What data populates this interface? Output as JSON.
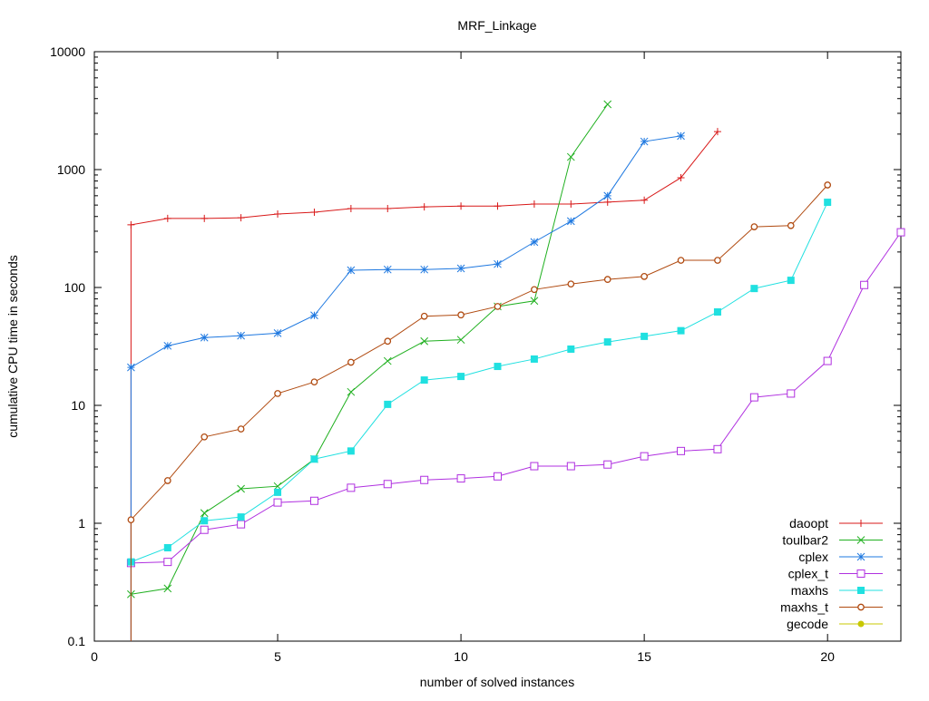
{
  "chart_data": {
    "type": "line",
    "title": "MRF_Linkage",
    "xlabel": "number of solved instances",
    "ylabel": "cumulative CPU time in seconds",
    "xlim": [
      0,
      22
    ],
    "ylim": [
      0.1,
      10000
    ],
    "yscale": "log",
    "xticks": [
      0,
      5,
      10,
      15,
      20
    ],
    "xtick_labels": [
      "0",
      "5",
      "10",
      "15",
      "20"
    ],
    "yticks": [
      0.1,
      1,
      10,
      100,
      1000,
      10000
    ],
    "ytick_labels": [
      "0.1",
      "1",
      "10",
      "100",
      "1000",
      "10000"
    ],
    "grid": false,
    "legend_position": "bottom-right",
    "series": [
      {
        "name": "daoopt",
        "color": "#d81818",
        "marker": "plus",
        "drops_to_axis": true,
        "x": [
          1,
          2,
          3,
          4,
          5,
          6,
          7,
          8,
          9,
          10,
          11,
          12,
          13,
          14,
          15,
          16,
          17
        ],
        "y": [
          340,
          385,
          385,
          390,
          420,
          435,
          467,
          467,
          483,
          490,
          490,
          510,
          510,
          530,
          550,
          853,
          2100
        ]
      },
      {
        "name": "toulbar2",
        "color": "#20b020",
        "marker": "cross",
        "drops_to_axis": false,
        "x": [
          1,
          2,
          3,
          4,
          5,
          6,
          7,
          8,
          9,
          10,
          11,
          12,
          13,
          14
        ],
        "y": [
          0.25,
          0.28,
          1.22,
          1.96,
          2.06,
          3.5,
          13,
          23.8,
          35,
          36,
          69,
          77,
          1280,
          3580
        ]
      },
      {
        "name": "cplex",
        "color": "#1e78e0",
        "marker": "star",
        "drops_to_axis": true,
        "x": [
          1,
          2,
          3,
          4,
          5,
          6,
          7,
          8,
          9,
          10,
          11,
          12,
          13,
          14,
          15,
          16
        ],
        "y": [
          21,
          32,
          37.6,
          39,
          41,
          58,
          140,
          142,
          142,
          145,
          158,
          243,
          365,
          600,
          1730,
          1930
        ]
      },
      {
        "name": "cplex_t",
        "color": "#b030e0",
        "marker": "open-square",
        "drops_to_axis": false,
        "x": [
          1,
          2,
          3,
          4,
          5,
          6,
          7,
          8,
          9,
          10,
          11,
          12,
          13,
          14,
          15,
          16,
          17,
          18,
          19,
          20,
          21,
          22
        ],
        "y": [
          0.46,
          0.47,
          0.88,
          0.98,
          1.5,
          1.55,
          2.0,
          2.15,
          2.33,
          2.4,
          2.5,
          3.05,
          3.05,
          3.15,
          3.7,
          4.1,
          4.25,
          11.7,
          12.6,
          23.8,
          105,
          294
        ]
      },
      {
        "name": "maxhs",
        "color": "#20e0e0",
        "marker": "filled-square",
        "drops_to_axis": false,
        "x": [
          1,
          2,
          3,
          4,
          5,
          6,
          7,
          8,
          9,
          10,
          11,
          12,
          13,
          14,
          15,
          16,
          17,
          18,
          19,
          20
        ],
        "y": [
          0.47,
          0.62,
          1.05,
          1.13,
          1.83,
          3.5,
          4.1,
          10.2,
          16.4,
          17.6,
          21.4,
          24.7,
          30,
          34.5,
          38.5,
          43,
          62,
          98,
          115,
          528
        ]
      },
      {
        "name": "maxhs_t",
        "color": "#b04a10",
        "marker": "open-circle",
        "drops_to_axis": true,
        "x": [
          1,
          2,
          3,
          4,
          5,
          6,
          7,
          8,
          9,
          10,
          11,
          12,
          13,
          14,
          15,
          16,
          17,
          18,
          19,
          20
        ],
        "y": [
          1.07,
          2.3,
          5.4,
          6.3,
          12.6,
          15.8,
          23.2,
          35,
          57,
          58.5,
          69,
          96,
          107,
          117,
          124,
          170,
          170,
          327,
          335,
          740
        ]
      },
      {
        "name": "gecode",
        "color": "#c8c800",
        "marker": "filled-circle",
        "drops_to_axis": false,
        "x": [],
        "y": []
      }
    ]
  }
}
